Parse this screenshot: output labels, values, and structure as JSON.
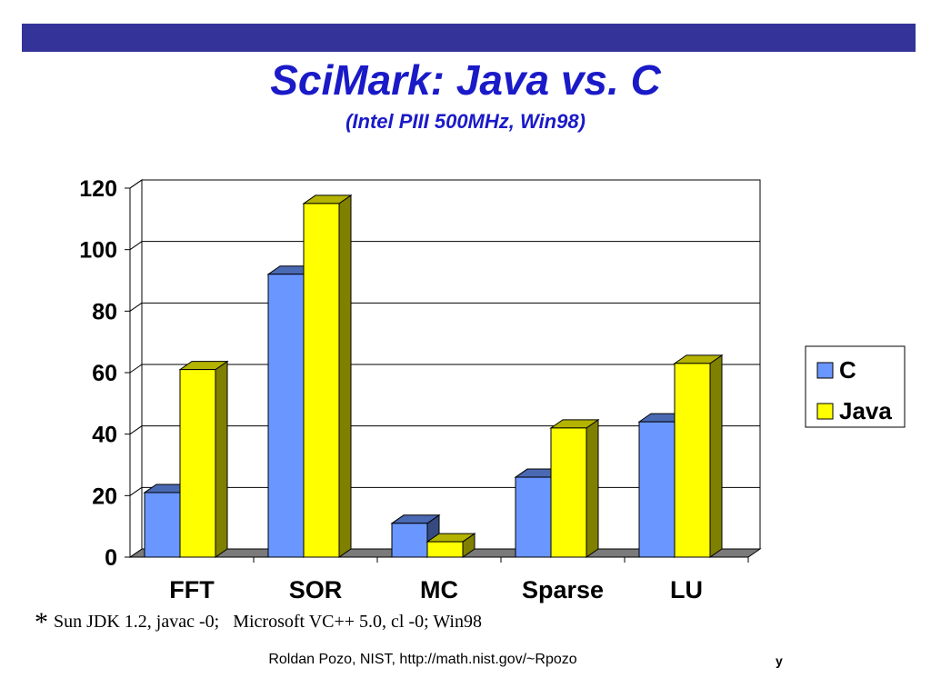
{
  "header": {
    "title": "SciMark: Java vs. C",
    "subtitle": "(Intel PIII 500MHz, Win98)"
  },
  "colors": {
    "bar": "#33339a",
    "title": "#1a1ac8",
    "c_series": "#6a96ff",
    "java_series": "#ffff00"
  },
  "chart_data": {
    "type": "bar",
    "style": "3d-clustered",
    "categories": [
      "FFT",
      "SOR",
      "MC",
      "Sparse",
      "LU"
    ],
    "series": [
      {
        "name": "C",
        "values": [
          21,
          92,
          11,
          26,
          44
        ],
        "color": "#6a96ff"
      },
      {
        "name": "Java",
        "values": [
          61,
          115,
          5,
          42,
          63
        ],
        "color": "#ffff00"
      }
    ],
    "ylim": [
      0,
      120
    ],
    "yticks": [
      "0",
      "20",
      "40",
      "60",
      "80",
      "100",
      "120"
    ],
    "grid": true,
    "legend": "right"
  },
  "note": {
    "star": "*",
    "text": "Sun JDK 1.2, javac -0;   Microsoft VC++ 5.0, cl -0; Win98"
  },
  "footer": {
    "credit": "Roldan Pozo, NIST, http://math.nist.gov/~Rpozo",
    "page_mark": "y"
  }
}
